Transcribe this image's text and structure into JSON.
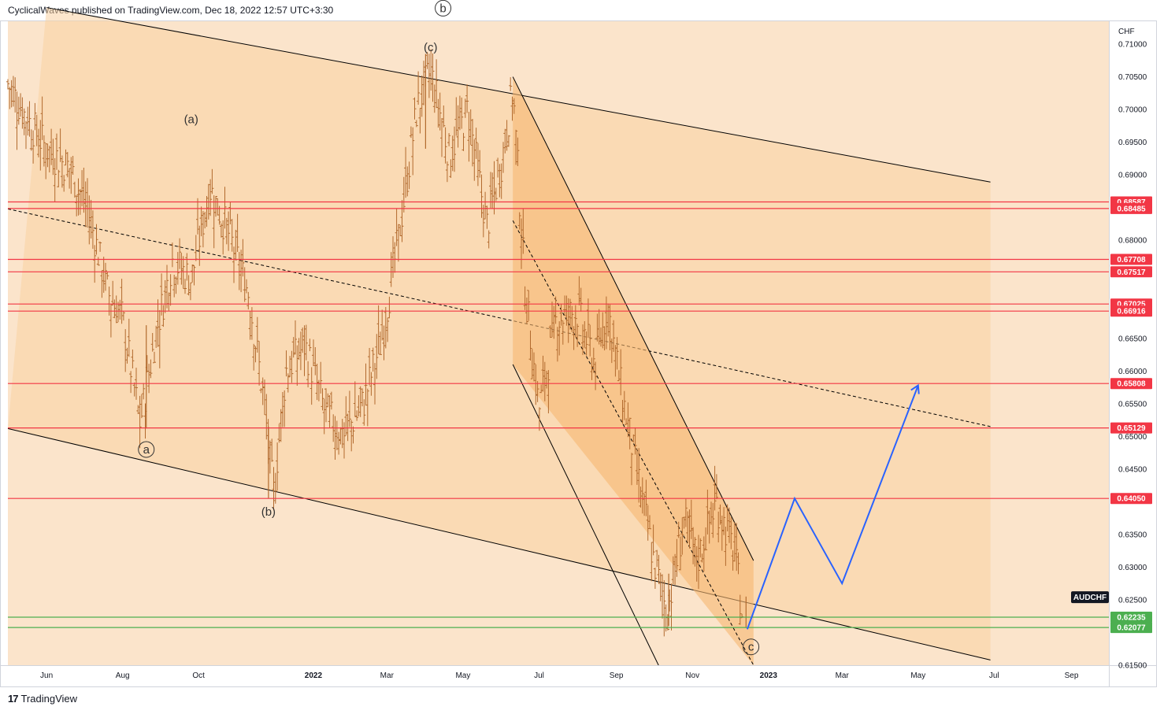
{
  "header": {
    "publisher_line": "CyclicalWaves published on TradingView.com, Dec 18, 2022 12:57 UTC+3:30"
  },
  "footer": {
    "brand": "TradingView",
    "logo_glyph": "17"
  },
  "colors": {
    "background": "#fbe4cb",
    "channel_fill": "#f9d2a3",
    "inner_channel_fill": "#f6b872",
    "candle": "#b26a2e",
    "resistance": "#f23645",
    "support": "#4caf50",
    "projection": "#2962ff",
    "trendline": "#000000"
  },
  "chart_data": {
    "type": "candlestick",
    "symbol": "AUDCHF",
    "currency": "CHF",
    "y_axis": {
      "min": 0.615,
      "max": 0.7135,
      "ticks": [
        0.71,
        0.705,
        0.7,
        0.695,
        0.69,
        0.68,
        0.665,
        0.66,
        0.655,
        0.65,
        0.645,
        0.635,
        0.63,
        0.625,
        0.615
      ],
      "tick_labels": [
        "0.71000",
        "0.70500",
        "0.70000",
        "0.69500",
        "0.69000",
        "0.68000",
        "0.66500",
        "0.66000",
        "0.65500",
        "0.65000",
        "0.64500",
        "0.63500",
        "0.63000",
        "0.62500",
        "0.61500"
      ]
    },
    "x_axis": {
      "start": "2021-05-01",
      "end": "2023-10-01",
      "ticks": [
        {
          "date": "2021-06-01",
          "label": "Jun",
          "bold": false
        },
        {
          "date": "2021-08-01",
          "label": "Aug",
          "bold": false
        },
        {
          "date": "2021-10-01",
          "label": "Oct",
          "bold": false
        },
        {
          "date": "2022-01-01",
          "label": "2022",
          "bold": true
        },
        {
          "date": "2022-03-01",
          "label": "Mar",
          "bold": false
        },
        {
          "date": "2022-05-01",
          "label": "May",
          "bold": false
        },
        {
          "date": "2022-07-01",
          "label": "Jul",
          "bold": false
        },
        {
          "date": "2022-09-01",
          "label": "Sep",
          "bold": false
        },
        {
          "date": "2022-11-01",
          "label": "Nov",
          "bold": false
        },
        {
          "date": "2023-01-01",
          "label": "2023",
          "bold": true
        },
        {
          "date": "2023-03-01",
          "label": "Mar",
          "bold": false
        },
        {
          "date": "2023-05-01",
          "label": "May",
          "bold": false
        },
        {
          "date": "2023-07-01",
          "label": "Jul",
          "bold": false
        },
        {
          "date": "2023-09-01",
          "label": "Sep",
          "bold": false
        }
      ]
    },
    "price_path": [
      [
        "2021-05-01",
        0.704
      ],
      [
        "2021-05-15",
        0.699
      ],
      [
        "2021-06-01",
        0.694
      ],
      [
        "2021-06-20",
        0.691
      ],
      [
        "2021-07-05",
        0.684
      ],
      [
        "2021-07-20",
        0.672
      ],
      [
        "2021-08-01",
        0.668
      ],
      [
        "2021-08-15",
        0.652
      ],
      [
        "2021-08-28",
        0.666
      ],
      [
        "2021-09-10",
        0.677
      ],
      [
        "2021-09-25",
        0.674
      ],
      [
        "2021-10-10",
        0.688
      ],
      [
        "2021-10-25",
        0.681
      ],
      [
        "2021-11-10",
        0.672
      ],
      [
        "2021-11-22",
        0.656
      ],
      [
        "2021-11-30",
        0.641
      ],
      [
        "2021-12-10",
        0.66
      ],
      [
        "2021-12-25",
        0.664
      ],
      [
        "2022-01-10",
        0.654
      ],
      [
        "2022-01-25",
        0.65
      ],
      [
        "2022-02-10",
        0.655
      ],
      [
        "2022-02-25",
        0.665
      ],
      [
        "2022-03-10",
        0.68
      ],
      [
        "2022-03-25",
        0.7
      ],
      [
        "2022-04-05",
        0.706
      ],
      [
        "2022-04-20",
        0.693
      ],
      [
        "2022-05-05",
        0.7
      ],
      [
        "2022-05-20",
        0.682
      ],
      [
        "2022-06-01",
        0.692
      ],
      [
        "2022-06-10",
        0.703
      ],
      [
        "2022-06-20",
        0.672
      ],
      [
        "2022-07-01",
        0.654
      ],
      [
        "2022-07-15",
        0.668
      ],
      [
        "2022-08-01",
        0.669
      ],
      [
        "2022-08-15",
        0.661
      ],
      [
        "2022-08-25",
        0.67
      ],
      [
        "2022-09-05",
        0.657
      ],
      [
        "2022-09-20",
        0.642
      ],
      [
        "2022-10-01",
        0.631
      ],
      [
        "2022-10-12",
        0.623
      ],
      [
        "2022-10-25",
        0.637
      ],
      [
        "2022-11-05",
        0.631
      ],
      [
        "2022-11-20",
        0.64
      ],
      [
        "2022-12-05",
        0.632
      ],
      [
        "2022-12-12",
        0.6215
      ]
    ],
    "candle_ranges": [
      {
        "date": "2021-08-20",
        "high": 0.667,
        "low": 0.6512
      },
      {
        "date": "2021-11-26",
        "high": 0.6515,
        "low": 0.6405
      },
      {
        "date": "2022-04-01",
        "high": 0.7085,
        "low": 0.694
      },
      {
        "date": "2022-10-13",
        "high": 0.629,
        "low": 0.621
      },
      {
        "date": "2022-12-14",
        "high": 0.6255,
        "low": 0.6207
      }
    ],
    "horizontal_levels": [
      {
        "value": 0.68587,
        "label": "0.68587",
        "kind": "resistance"
      },
      {
        "value": 0.68485,
        "label": "0.68485",
        "kind": "resistance"
      },
      {
        "value": 0.67708,
        "label": "0.67708",
        "kind": "resistance"
      },
      {
        "value": 0.67517,
        "label": "0.67517",
        "kind": "resistance"
      },
      {
        "value": 0.67025,
        "label": "0.67025",
        "kind": "resistance"
      },
      {
        "value": 0.66916,
        "label": "0.66916",
        "kind": "resistance"
      },
      {
        "value": 0.65808,
        "label": "0.65808",
        "kind": "resistance"
      },
      {
        "value": 0.65129,
        "label": "0.65129",
        "kind": "resistance"
      },
      {
        "value": 0.6405,
        "label": "0.64050",
        "kind": "resistance"
      },
      {
        "value": 0.62235,
        "label": "0.62235",
        "kind": "support"
      },
      {
        "value": 0.62077,
        "label": "0.62077",
        "kind": "support"
      }
    ],
    "symbol_badge": {
      "label": "AUDCHF",
      "value": 0.6245
    },
    "trend_channel": {
      "upper": [
        [
          "2021-06-01",
          0.7156
        ],
        [
          "2023-06-28",
          0.6889
        ]
      ],
      "lower": [
        [
          "2021-05-01",
          0.6512
        ],
        [
          "2023-06-28",
          0.6158
        ]
      ],
      "midline": [
        [
          "2021-05-01",
          0.6848
        ],
        [
          "2023-06-28",
          0.6515
        ]
      ]
    },
    "inner_channel": {
      "upper": [
        [
          "2022-06-10",
          0.705
        ],
        [
          "2022-12-20",
          0.631
        ]
      ],
      "lower": [
        [
          "2022-06-10",
          0.661
        ],
        [
          "2022-12-20",
          0.585
        ]
      ],
      "midline": [
        [
          "2022-06-10",
          0.683
        ],
        [
          "2022-12-20",
          0.615
        ]
      ],
      "shaded_until": "2022-12-20"
    },
    "projection_path": [
      [
        "2022-12-15",
        0.6205
      ],
      [
        "2023-01-22",
        0.6405
      ],
      [
        "2023-03-01",
        0.6275
      ],
      [
        "2023-05-01",
        0.6578
      ]
    ],
    "wave_labels": [
      {
        "text": "b",
        "date": "2022-04-15",
        "value": 0.7155,
        "circled": true
      },
      {
        "text": "(c)",
        "date": "2022-04-05",
        "value": 0.7095,
        "circled": false
      },
      {
        "text": "(a)",
        "date": "2021-09-25",
        "value": 0.6985,
        "circled": false
      },
      {
        "text": "a",
        "date": "2021-08-20",
        "value": 0.648,
        "circled": true
      },
      {
        "text": "(b)",
        "date": "2021-11-26",
        "value": 0.6385,
        "circled": false
      },
      {
        "text": "c",
        "date": "2022-12-18",
        "value": 0.6178,
        "circled": true
      }
    ]
  }
}
